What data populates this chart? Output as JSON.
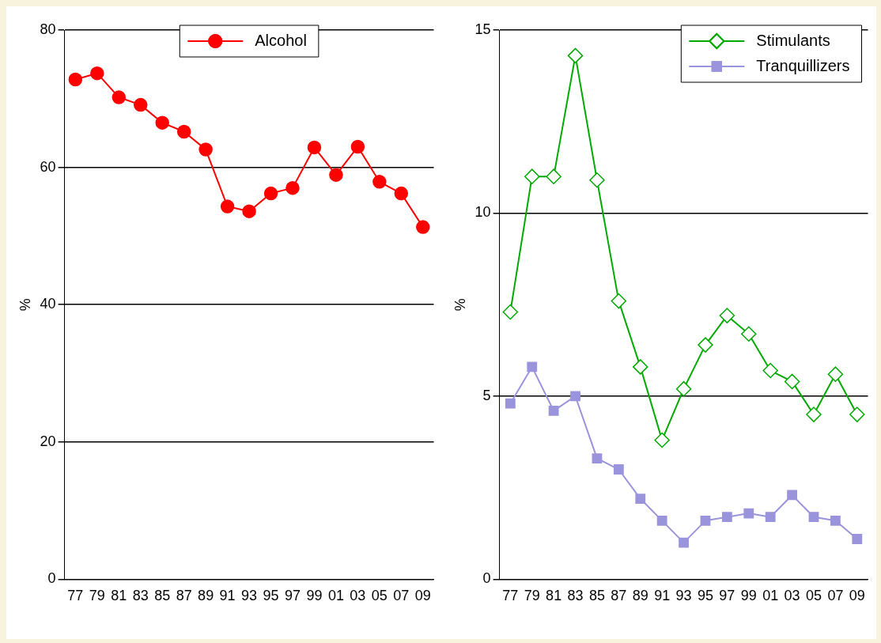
{
  "chart_data": [
    {
      "type": "line",
      "categories": [
        "77",
        "79",
        "81",
        "83",
        "85",
        "87",
        "89",
        "91",
        "93",
        "95",
        "97",
        "99",
        "01",
        "03",
        "05",
        "07",
        "09"
      ],
      "ylabel": "%",
      "ylim": [
        0,
        80
      ],
      "yticks": [
        0,
        20,
        40,
        60,
        80
      ],
      "grid": "y",
      "legend": "top",
      "line_style": "solid",
      "series": [
        {
          "name": "Alcohol",
          "color": "#ff0000",
          "marker": "circle",
          "values": [
            72.8,
            73.7,
            70.2,
            69.1,
            66.5,
            65.2,
            62.6,
            54.3,
            53.6,
            56.2,
            57.0,
            62.9,
            58.9,
            63.0,
            57.9,
            56.2,
            51.3
          ]
        }
      ]
    },
    {
      "type": "line",
      "categories": [
        "77",
        "79",
        "81",
        "83",
        "85",
        "87",
        "89",
        "91",
        "93",
        "95",
        "97",
        "99",
        "01",
        "03",
        "05",
        "07",
        "09"
      ],
      "ylabel": "%",
      "ylim": [
        0,
        15
      ],
      "yticks": [
        0,
        5,
        10,
        15
      ],
      "grid": "y",
      "legend": "top right",
      "line_style": "solid",
      "series": [
        {
          "name": "Stimulants",
          "color": "#00aa00",
          "marker": "diamond",
          "values": [
            7.3,
            11.0,
            11.0,
            14.3,
            10.9,
            7.6,
            5.8,
            3.8,
            5.2,
            6.4,
            7.2,
            6.7,
            5.7,
            5.4,
            4.5,
            5.6,
            4.5
          ]
        },
        {
          "name": "Tranquillizers",
          "color": "#9a94dc",
          "marker": "square",
          "values": [
            4.8,
            5.8,
            4.6,
            5.0,
            3.3,
            3.0,
            2.2,
            1.6,
            1.0,
            1.6,
            1.7,
            1.8,
            1.7,
            2.3,
            1.7,
            1.6,
            1.1
          ]
        }
      ]
    }
  ]
}
